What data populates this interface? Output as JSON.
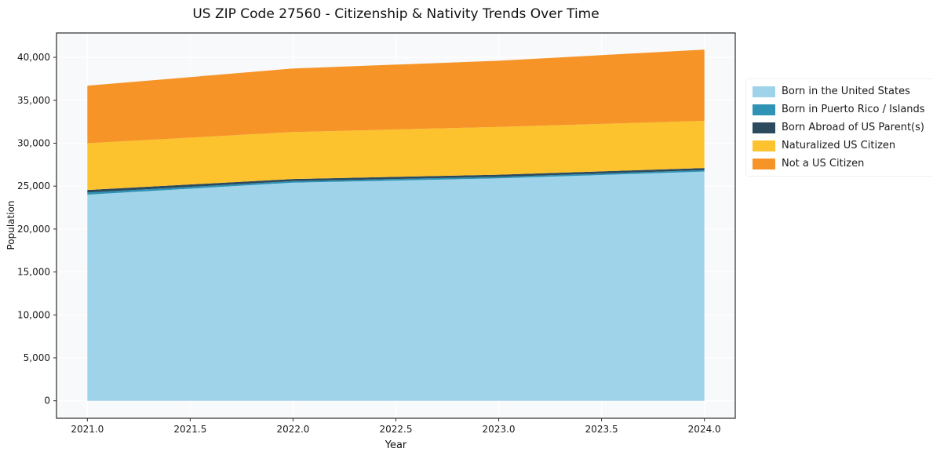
{
  "chart_data": {
    "type": "area",
    "title": "US ZIP Code 27560 - Citizenship & Nativity Trends Over Time",
    "xlabel": "Year",
    "ylabel": "Population",
    "x": [
      2021,
      2022,
      2023,
      2024
    ],
    "series": [
      {
        "name": "Born in the United States",
        "color": "#9fd3ea",
        "values": [
          24000,
          25400,
          25900,
          26700
        ]
      },
      {
        "name": "Born in Puerto Rico / Islands",
        "color": "#2e93b5",
        "values": [
          250,
          180,
          180,
          160
        ]
      },
      {
        "name": "Born Abroad of US Parent(s)",
        "color": "#2b4a5e",
        "values": [
          300,
          250,
          250,
          250
        ]
      },
      {
        "name": "Naturalized US Citizen",
        "color": "#fcc32e",
        "values": [
          5450,
          5470,
          5570,
          5490
        ]
      },
      {
        "name": "Not a US Citizen",
        "color": "#f79428",
        "values": [
          6700,
          7400,
          7700,
          8300
        ]
      }
    ],
    "xlim": [
      2020.85,
      2024.15
    ],
    "ylim": [
      -2040,
      42840
    ],
    "xticks": [
      2021.0,
      2021.5,
      2022.0,
      2022.5,
      2023.0,
      2023.5,
      2024.0
    ],
    "yticks": [
      0,
      5000,
      10000,
      15000,
      20000,
      25000,
      30000,
      35000,
      40000
    ],
    "grid": true,
    "legend_position": "right",
    "plot_background": "#f8f9fa",
    "gridline_color": "#ffffff",
    "spine_color": "#2b2b2b"
  }
}
